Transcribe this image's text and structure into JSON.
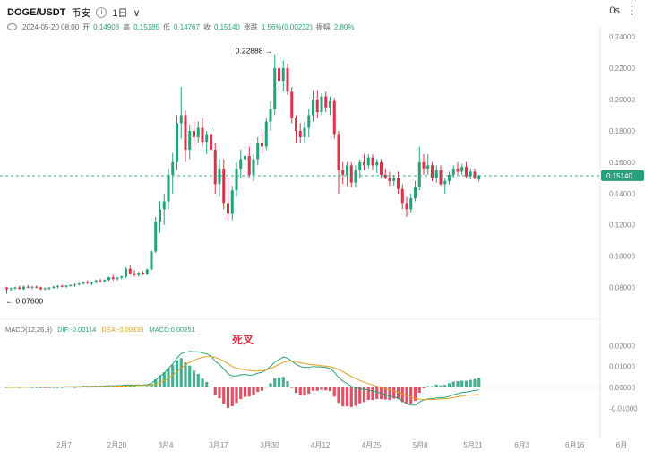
{
  "header": {
    "pair": "DOGE/USDT",
    "exchange": "币安",
    "timeframe": "1日",
    "datetime": "2024-05-20 08:00",
    "open_label": "开",
    "open": "0.14908",
    "high_label": "高",
    "high": "0.15185",
    "low_label": "低",
    "low": "0.14767",
    "close_label": "收",
    "close": "0.15140",
    "change_label": "涨跌",
    "change": "1.56%(0.00232)",
    "amp_label": "振幅",
    "amp": "2.80%",
    "right_text": "0s"
  },
  "macd_legend": {
    "title": "MACD(12,26,9)",
    "dif": "DIF:-0.00114",
    "dea": "DEA:-0.00339",
    "macd": "MACD:0.00251"
  },
  "annotation": {
    "dead_cross": "死叉"
  },
  "colors": {
    "up": "#26a17b",
    "down": "#d9334a",
    "dif": "#26a17b",
    "dea": "#e0a020"
  },
  "chart_data": [
    {
      "type": "candlestick",
      "ylim": [
        0.062,
        0.243
      ],
      "y_ticks": [
        "0.24000",
        "0.22000",
        "0.20000",
        "0.18000",
        "0.16000",
        "0.14000",
        "0.12000",
        "0.10000",
        "0.08000"
      ],
      "x_ticks": [
        "2月7",
        "2月20",
        "3月4",
        "3月17",
        "3月30",
        "4月12",
        "4月25",
        "5月8",
        "5月21",
        "6月3",
        "6月16",
        "6月"
      ],
      "current_price": "0.15140",
      "high_marker": "0.22888",
      "low_marker": "0.07600",
      "grid": false,
      "candles": [
        [
          0.08,
          0.0805,
          0.076,
          0.079
        ],
        [
          0.079,
          0.08,
          0.0775,
          0.0795
        ],
        [
          0.0795,
          0.0805,
          0.0785,
          0.08
        ],
        [
          0.08,
          0.081,
          0.079,
          0.079
        ],
        [
          0.079,
          0.0812,
          0.0785,
          0.0805
        ],
        [
          0.0805,
          0.0815,
          0.0795,
          0.08
        ],
        [
          0.08,
          0.081,
          0.079,
          0.0805
        ],
        [
          0.0805,
          0.0812,
          0.0795,
          0.08
        ],
        [
          0.08,
          0.0805,
          0.0785,
          0.079
        ],
        [
          0.079,
          0.08,
          0.0782,
          0.0795
        ],
        [
          0.0795,
          0.0805,
          0.0785,
          0.0798
        ],
        [
          0.0798,
          0.081,
          0.0792,
          0.0805
        ],
        [
          0.0805,
          0.0815,
          0.0795,
          0.081
        ],
        [
          0.081,
          0.0818,
          0.08,
          0.0805
        ],
        [
          0.0805,
          0.0815,
          0.0798,
          0.0812
        ],
        [
          0.0812,
          0.082,
          0.0805,
          0.0815
        ],
        [
          0.0815,
          0.0825,
          0.0805,
          0.082
        ],
        [
          0.082,
          0.083,
          0.0812,
          0.0825
        ],
        [
          0.0825,
          0.084,
          0.0818,
          0.0835
        ],
        [
          0.0835,
          0.0845,
          0.082,
          0.0828
        ],
        [
          0.0828,
          0.0838,
          0.0815,
          0.0833
        ],
        [
          0.0833,
          0.085,
          0.0825,
          0.0845
        ],
        [
          0.0845,
          0.0855,
          0.083,
          0.084
        ],
        [
          0.084,
          0.0852,
          0.083,
          0.0848
        ],
        [
          0.0848,
          0.087,
          0.084,
          0.0865
        ],
        [
          0.0865,
          0.088,
          0.0845,
          0.0855
        ],
        [
          0.0855,
          0.087,
          0.0845,
          0.0862
        ],
        [
          0.0862,
          0.0875,
          0.0852,
          0.087
        ],
        [
          0.087,
          0.093,
          0.086,
          0.092
        ],
        [
          0.092,
          0.094,
          0.088,
          0.089
        ],
        [
          0.089,
          0.091,
          0.087,
          0.088
        ],
        [
          0.088,
          0.09,
          0.087,
          0.0895
        ],
        [
          0.0895,
          0.0905,
          0.088,
          0.0885
        ],
        [
          0.0885,
          0.092,
          0.088,
          0.0915
        ],
        [
          0.0915,
          0.104,
          0.091,
          0.103
        ],
        [
          0.103,
          0.125,
          0.102,
          0.122
        ],
        [
          0.122,
          0.135,
          0.115,
          0.13
        ],
        [
          0.13,
          0.14,
          0.12,
          0.135
        ],
        [
          0.135,
          0.156,
          0.13,
          0.152
        ],
        [
          0.152,
          0.166,
          0.14,
          0.16
        ],
        [
          0.16,
          0.19,
          0.155,
          0.185
        ],
        [
          0.185,
          0.208,
          0.175,
          0.19
        ],
        [
          0.19,
          0.193,
          0.16,
          0.168
        ],
        [
          0.168,
          0.184,
          0.162,
          0.18
        ],
        [
          0.18,
          0.186,
          0.17,
          0.176
        ],
        [
          0.176,
          0.186,
          0.172,
          0.182
        ],
        [
          0.182,
          0.188,
          0.17,
          0.173
        ],
        [
          0.173,
          0.18,
          0.165,
          0.178
        ],
        [
          0.178,
          0.182,
          0.166,
          0.168
        ],
        [
          0.168,
          0.172,
          0.14,
          0.146
        ],
        [
          0.146,
          0.162,
          0.138,
          0.156
        ],
        [
          0.156,
          0.162,
          0.13,
          0.134
        ],
        [
          0.134,
          0.15,
          0.123,
          0.127
        ],
        [
          0.127,
          0.145,
          0.123,
          0.142
        ],
        [
          0.142,
          0.16,
          0.138,
          0.156
        ],
        [
          0.156,
          0.168,
          0.15,
          0.162
        ],
        [
          0.162,
          0.17,
          0.156,
          0.164
        ],
        [
          0.164,
          0.17,
          0.15,
          0.152
        ],
        [
          0.152,
          0.165,
          0.148,
          0.162
        ],
        [
          0.162,
          0.176,
          0.158,
          0.172
        ],
        [
          0.172,
          0.18,
          0.165,
          0.17
        ],
        [
          0.17,
          0.188,
          0.168,
          0.186
        ],
        [
          0.186,
          0.199,
          0.18,
          0.194
        ],
        [
          0.194,
          0.2289,
          0.19,
          0.22
        ],
        [
          0.22,
          0.228,
          0.205,
          0.212
        ],
        [
          0.212,
          0.225,
          0.205,
          0.22
        ],
        [
          0.22,
          0.223,
          0.203,
          0.205
        ],
        [
          0.205,
          0.208,
          0.185,
          0.188
        ],
        [
          0.188,
          0.19,
          0.172,
          0.18
        ],
        [
          0.18,
          0.185,
          0.172,
          0.176
        ],
        [
          0.176,
          0.186,
          0.172,
          0.182
        ],
        [
          0.182,
          0.194,
          0.176,
          0.19
        ],
        [
          0.19,
          0.206,
          0.186,
          0.2
        ],
        [
          0.2,
          0.206,
          0.188,
          0.192
        ],
        [
          0.192,
          0.204,
          0.19,
          0.202
        ],
        [
          0.202,
          0.205,
          0.192,
          0.195
        ],
        [
          0.195,
          0.202,
          0.19,
          0.199
        ],
        [
          0.199,
          0.201,
          0.175,
          0.178
        ],
        [
          0.178,
          0.18,
          0.14,
          0.155
        ],
        [
          0.155,
          0.16,
          0.146,
          0.152
        ],
        [
          0.152,
          0.16,
          0.145,
          0.158
        ],
        [
          0.158,
          0.16,
          0.144,
          0.147
        ],
        [
          0.147,
          0.158,
          0.144,
          0.155
        ],
        [
          0.155,
          0.162,
          0.15,
          0.16
        ],
        [
          0.16,
          0.165,
          0.155,
          0.158
        ],
        [
          0.158,
          0.165,
          0.156,
          0.163
        ],
        [
          0.163,
          0.165,
          0.155,
          0.158
        ],
        [
          0.158,
          0.162,
          0.153,
          0.16
        ],
        [
          0.16,
          0.162,
          0.15,
          0.152
        ],
        [
          0.152,
          0.156,
          0.149,
          0.15
        ],
        [
          0.15,
          0.154,
          0.145,
          0.148
        ],
        [
          0.148,
          0.152,
          0.145,
          0.15
        ],
        [
          0.15,
          0.154,
          0.14,
          0.143
        ],
        [
          0.143,
          0.146,
          0.13,
          0.134
        ],
        [
          0.134,
          0.138,
          0.125,
          0.13
        ],
        [
          0.13,
          0.14,
          0.128,
          0.137
        ],
        [
          0.137,
          0.148,
          0.135,
          0.144
        ],
        [
          0.144,
          0.17,
          0.142,
          0.16
        ],
        [
          0.16,
          0.165,
          0.152,
          0.156
        ],
        [
          0.156,
          0.165,
          0.152,
          0.158
        ],
        [
          0.158,
          0.16,
          0.148,
          0.15
        ],
        [
          0.15,
          0.158,
          0.147,
          0.155
        ],
        [
          0.155,
          0.158,
          0.145,
          0.146
        ],
        [
          0.146,
          0.15,
          0.14,
          0.148
        ],
        [
          0.148,
          0.154,
          0.146,
          0.152
        ],
        [
          0.152,
          0.158,
          0.15,
          0.156
        ],
        [
          0.156,
          0.16,
          0.152,
          0.154
        ],
        [
          0.154,
          0.159,
          0.152,
          0.157
        ],
        [
          0.157,
          0.16,
          0.15,
          0.151
        ],
        [
          0.151,
          0.156,
          0.149,
          0.154
        ],
        [
          0.154,
          0.156,
          0.149,
          0.15
        ],
        [
          0.1491,
          0.1519,
          0.1477,
          0.1514
        ]
      ]
    },
    {
      "type": "macd",
      "ylim": [
        -0.018,
        0.024
      ],
      "y_ticks": [
        "0.02000",
        "0.01000",
        "0.00000",
        "-0.01000"
      ],
      "series": [
        {
          "name": "DIF",
          "values": [
            0,
            0.0001,
            0.0002,
            0.0001,
            0.0002,
            0.0002,
            0.0002,
            0.0002,
            0.0001,
            0.0001,
            0.0001,
            0.0002,
            0.0002,
            0.0002,
            0.0003,
            0.0003,
            0.0003,
            0.0004,
            0.0005,
            0.0005,
            0.0005,
            0.0006,
            0.0006,
            0.0007,
            0.0008,
            0.0008,
            0.0008,
            0.0009,
            0.0012,
            0.0012,
            0.0011,
            0.0011,
            0.0011,
            0.0013,
            0.002,
            0.0035,
            0.0052,
            0.0068,
            0.009,
            0.0112,
            0.014,
            0.0162,
            0.0168,
            0.0172,
            0.017,
            0.017,
            0.0165,
            0.016,
            0.015,
            0.0125,
            0.011,
            0.0088,
            0.0065,
            0.0055,
            0.0055,
            0.006,
            0.0062,
            0.0058,
            0.006,
            0.0068,
            0.0072,
            0.0085,
            0.01,
            0.0122,
            0.0133,
            0.0145,
            0.014,
            0.0125,
            0.011,
            0.01,
            0.0095,
            0.0095,
            0.01,
            0.0098,
            0.0098,
            0.0095,
            0.009,
            0.0072,
            0.0048,
            0.003,
            0.0018,
            0.0005,
            -0.0002,
            -0.0005,
            -0.001,
            -0.0012,
            -0.0018,
            -0.0022,
            -0.0028,
            -0.0035,
            -0.0042,
            -0.0045,
            -0.0052,
            -0.0065,
            -0.0078,
            -0.0085,
            -0.0085,
            -0.007,
            -0.006,
            -0.0055,
            -0.0055,
            -0.005,
            -0.005,
            -0.0048,
            -0.0042,
            -0.0035,
            -0.003,
            -0.0025,
            -0.0022,
            -0.0018,
            -0.0015,
            -0.0011
          ]
        },
        {
          "name": "DEA",
          "values": [
            0,
            0,
            0.0001,
            0.0001,
            0.0001,
            0.0001,
            0.0002,
            0.0002,
            0.0002,
            0.0002,
            0.0002,
            0.0002,
            0.0002,
            0.0002,
            0.0002,
            0.0002,
            0.0003,
            0.0003,
            0.0003,
            0.0004,
            0.0004,
            0.0004,
            0.0004,
            0.0005,
            0.0005,
            0.0006,
            0.0006,
            0.0006,
            0.0007,
            0.0008,
            0.0008,
            0.0009,
            0.0009,
            0.001,
            0.0012,
            0.0016,
            0.0023,
            0.0032,
            0.0044,
            0.0058,
            0.0075,
            0.0092,
            0.0108,
            0.012,
            0.013,
            0.0138,
            0.0144,
            0.0147,
            0.0148,
            0.0143,
            0.0136,
            0.0127,
            0.0114,
            0.01,
            0.0092,
            0.0088,
            0.0085,
            0.008,
            0.0078,
            0.0079,
            0.008,
            0.0084,
            0.009,
            0.01,
            0.011,
            0.012,
            0.0125,
            0.0126,
            0.0123,
            0.0118,
            0.0114,
            0.011,
            0.0108,
            0.0106,
            0.0104,
            0.0102,
            0.0099,
            0.0094,
            0.0085,
            0.0075,
            0.0063,
            0.0052,
            0.0042,
            0.0033,
            0.0025,
            0.0018,
            0.0012,
            0.0006,
            0,
            -0.0006,
            -0.0012,
            -0.0018,
            -0.0024,
            -0.003,
            -0.0038,
            -0.0046,
            -0.0053,
            -0.0057,
            -0.0058,
            -0.0058,
            -0.0058,
            -0.0057,
            -0.0055,
            -0.0054,
            -0.0052,
            -0.0049,
            -0.0045,
            -0.0041,
            -0.0038,
            -0.0036,
            -0.0035,
            -0.0034
          ]
        }
      ]
    }
  ]
}
